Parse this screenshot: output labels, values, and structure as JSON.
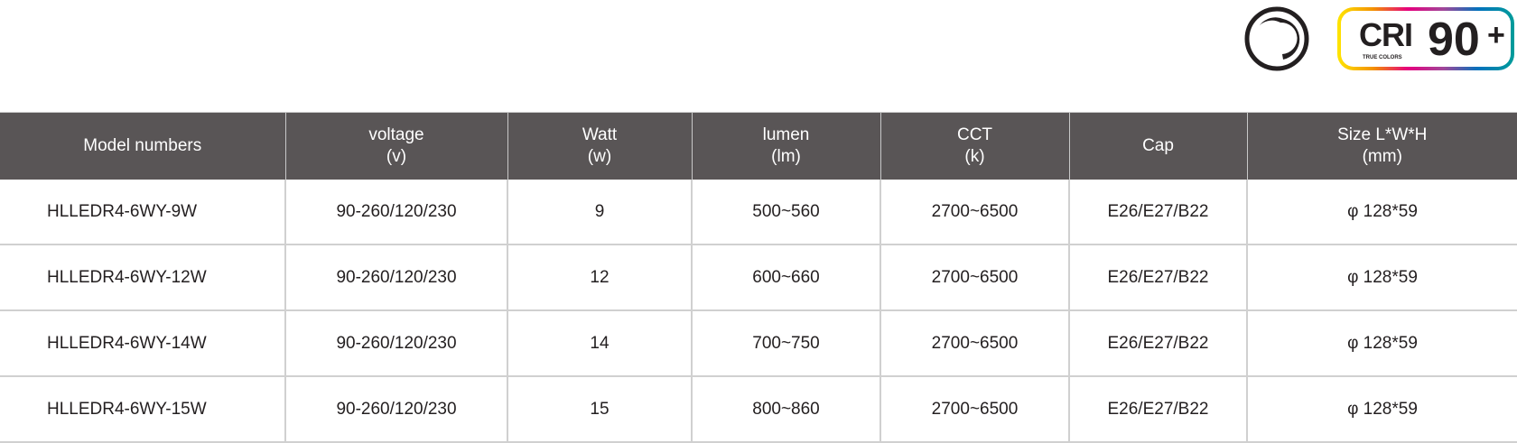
{
  "badges": {
    "ring_icon": "circle-arc-icon",
    "cri_label": "CRI",
    "cri_sub": "TRUE COLORS",
    "cri_value": "90",
    "cri_plus": "+",
    "gradient": [
      "#ffe600",
      "#f39200",
      "#e6007e",
      "#a0479a",
      "#0072bc",
      "#009c9a"
    ]
  },
  "table": {
    "header_color": "#595556",
    "headers": [
      [
        "Model numbers",
        ""
      ],
      [
        "voltage",
        "(v)"
      ],
      [
        "Watt",
        "(w)"
      ],
      [
        "lumen",
        "(lm)"
      ],
      [
        "CCT",
        "(k)"
      ],
      [
        "Cap",
        ""
      ],
      [
        "Size L*W*H",
        "(mm)"
      ]
    ],
    "rows": [
      [
        "HLLEDR4-6WY-9W",
        "90-260/120/230",
        "9",
        "500~560",
        "2700~6500",
        "E26/E27/B22",
        "φ 128*59"
      ],
      [
        "HLLEDR4-6WY-12W",
        "90-260/120/230",
        "12",
        "600~660",
        "2700~6500",
        "E26/E27/B22",
        "φ 128*59"
      ],
      [
        "HLLEDR4-6WY-14W",
        "90-260/120/230",
        "14",
        "700~750",
        "2700~6500",
        "E26/E27/B22",
        "φ 128*59"
      ],
      [
        "HLLEDR4-6WY-15W",
        "90-260/120/230",
        "15",
        "800~860",
        "2700~6500",
        "E26/E27/B22",
        "φ 128*59"
      ]
    ]
  }
}
